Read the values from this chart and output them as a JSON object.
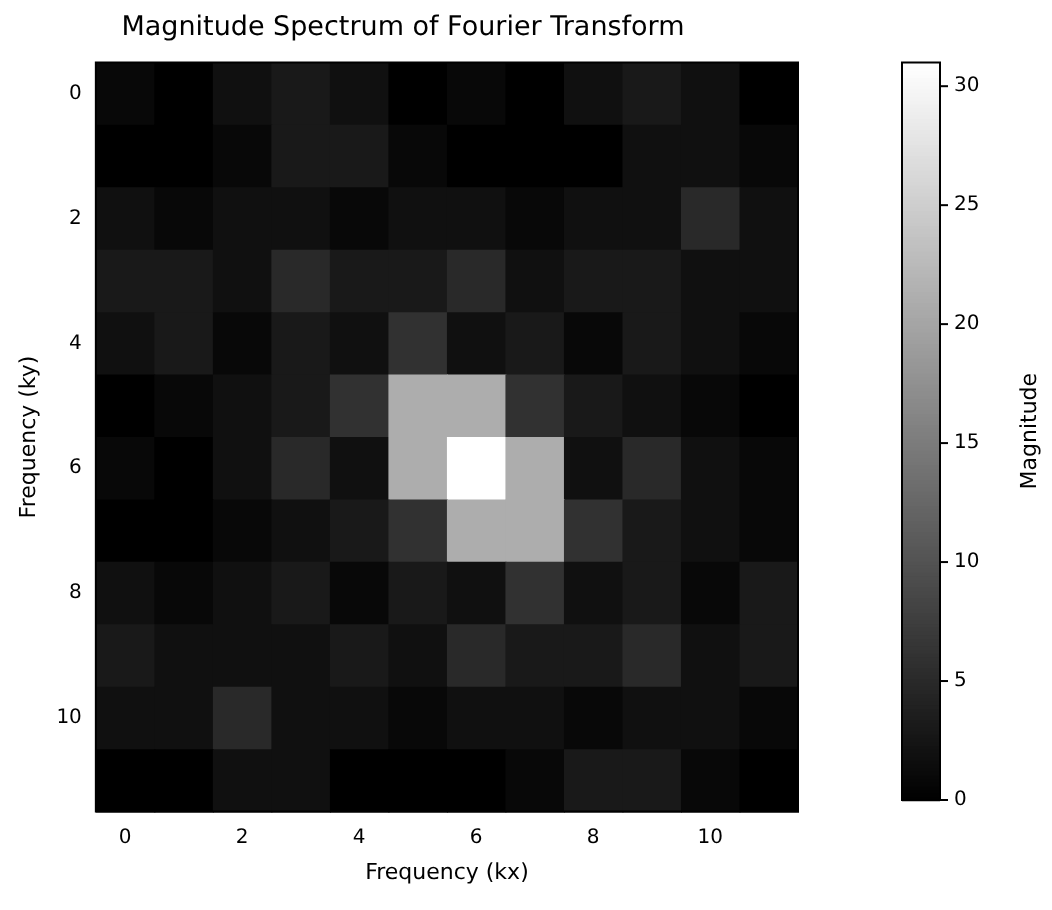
{
  "chart_data": {
    "type": "heatmap",
    "title": "Magnitude Spectrum of Fourier Transform",
    "xlabel": "Frequency (kx)",
    "ylabel": "Frequency (ky)",
    "clabel": "Magnitude",
    "categories": [
      "0",
      null,
      "2",
      null,
      "4",
      null,
      "6",
      null,
      "8",
      null,
      "10",
      null
    ],
    "y_categories": [
      "0",
      null,
      "2",
      null,
      "4",
      null,
      "6",
      null,
      "8",
      null,
      "10",
      null
    ],
    "cells": [
      [
        1,
        0,
        2,
        3,
        2,
        0,
        1,
        0,
        2,
        3,
        2,
        0
      ],
      [
        0,
        0,
        1,
        3,
        3,
        1,
        0,
        0,
        0,
        2,
        2,
        1
      ],
      [
        2,
        1,
        2,
        2,
        1,
        2,
        2,
        1,
        2,
        2,
        5,
        2
      ],
      [
        3,
        3,
        2,
        5,
        3,
        3,
        5,
        2,
        3,
        3,
        2,
        2
      ],
      [
        2,
        3,
        1,
        3,
        2,
        6,
        2,
        3,
        1,
        3,
        2,
        1
      ],
      [
        0,
        1,
        2,
        3,
        6,
        21,
        21,
        6,
        3,
        2,
        1,
        0
      ],
      [
        1,
        0,
        2,
        5,
        2,
        21,
        31,
        21,
        2,
        5,
        2,
        1
      ],
      [
        0,
        0,
        1,
        2,
        3,
        6,
        21,
        21,
        6,
        3,
        2,
        1
      ],
      [
        2,
        1,
        2,
        3,
        1,
        3,
        2,
        6,
        2,
        3,
        1,
        3
      ],
      [
        3,
        2,
        2,
        2,
        3,
        2,
        5,
        3,
        3,
        5,
        2,
        3
      ],
      [
        2,
        2,
        5,
        2,
        2,
        1,
        2,
        2,
        1,
        2,
        2,
        1
      ],
      [
        0,
        0,
        2,
        2,
        0,
        0,
        0,
        1,
        3,
        3,
        1,
        0
      ]
    ],
    "clim": [
      0,
      31
    ],
    "cticks": [
      0,
      5,
      10,
      15,
      20,
      25,
      30
    ]
  }
}
